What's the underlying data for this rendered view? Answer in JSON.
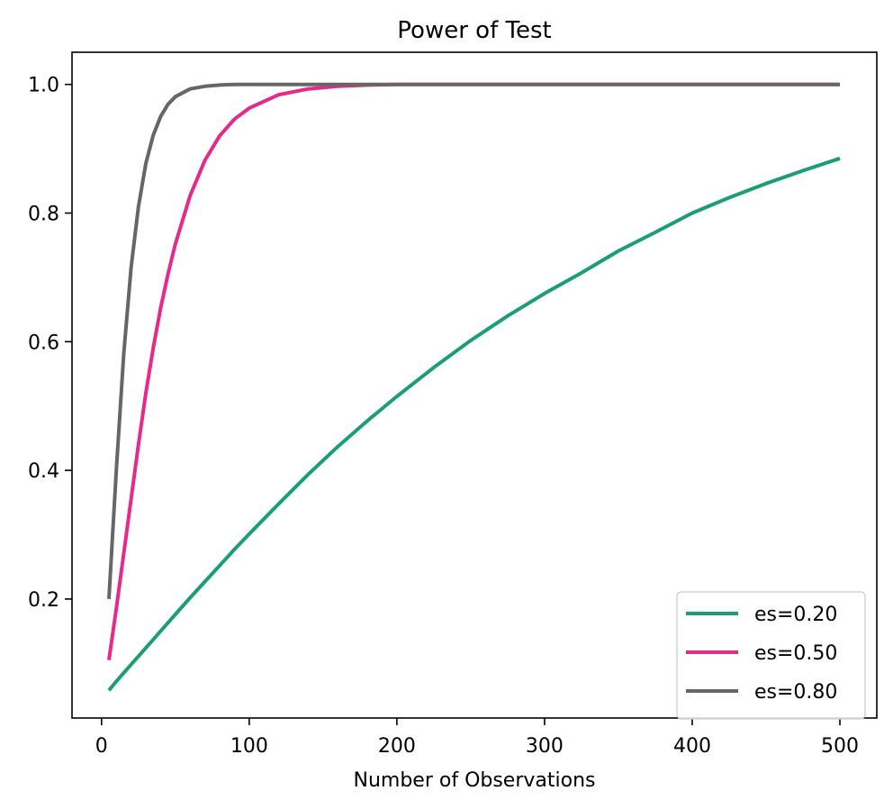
{
  "chart_data": {
    "type": "line",
    "title": "Power of Test",
    "xlabel": "Number of Observations",
    "ylabel": "",
    "xlim": [
      -20,
      525
    ],
    "ylim": [
      0.015,
      1.05
    ],
    "xticks": [
      0,
      100,
      200,
      300,
      400,
      500
    ],
    "xtick_labels": [
      "0",
      "100",
      "200",
      "300",
      "400",
      "500"
    ],
    "yticks": [
      0.2,
      0.4,
      0.6,
      0.8,
      1.0
    ],
    "ytick_labels": [
      "0.2",
      "0.4",
      "0.6",
      "0.8",
      "1.0"
    ],
    "grid": false,
    "legend_position": "lower-right",
    "x": [
      5,
      10,
      15,
      20,
      25,
      30,
      35,
      40,
      45,
      50,
      60,
      70,
      80,
      90,
      100,
      120,
      140,
      160,
      180,
      200,
      225,
      250,
      275,
      300,
      325,
      350,
      375,
      400,
      425,
      450,
      475,
      500
    ],
    "series": [
      {
        "name": "es=0.20",
        "color": "#1b9e77",
        "values": [
          0.058,
          0.072,
          0.085,
          0.098,
          0.111,
          0.124,
          0.137,
          0.15,
          0.163,
          0.176,
          0.202,
          0.227,
          0.252,
          0.277,
          0.301,
          0.348,
          0.394,
          0.437,
          0.477,
          0.515,
          0.56,
          0.602,
          0.64,
          0.675,
          0.707,
          0.741,
          0.77,
          0.8,
          0.824,
          0.846,
          0.866,
          0.885
        ]
      },
      {
        "name": "es=0.50",
        "color": "#e7298a",
        "values": [
          0.105,
          0.185,
          0.27,
          0.355,
          0.44,
          0.52,
          0.59,
          0.652,
          0.705,
          0.752,
          0.827,
          0.882,
          0.92,
          0.946,
          0.963,
          0.984,
          0.993,
          0.997,
          0.999,
          1.0,
          1.0,
          1.0,
          1.0,
          1.0,
          1.0,
          1.0,
          1.0,
          1.0,
          1.0,
          1.0,
          1.0,
          1.0
        ]
      },
      {
        "name": "es=0.80",
        "color": "#666666",
        "values": [
          0.2,
          0.4,
          0.58,
          0.715,
          0.81,
          0.877,
          0.921,
          0.95,
          0.969,
          0.981,
          0.993,
          0.997,
          0.999,
          1.0,
          1.0,
          1.0,
          1.0,
          1.0,
          1.0,
          1.0,
          1.0,
          1.0,
          1.0,
          1.0,
          1.0,
          1.0,
          1.0,
          1.0,
          1.0,
          1.0,
          1.0,
          1.0
        ]
      }
    ]
  }
}
